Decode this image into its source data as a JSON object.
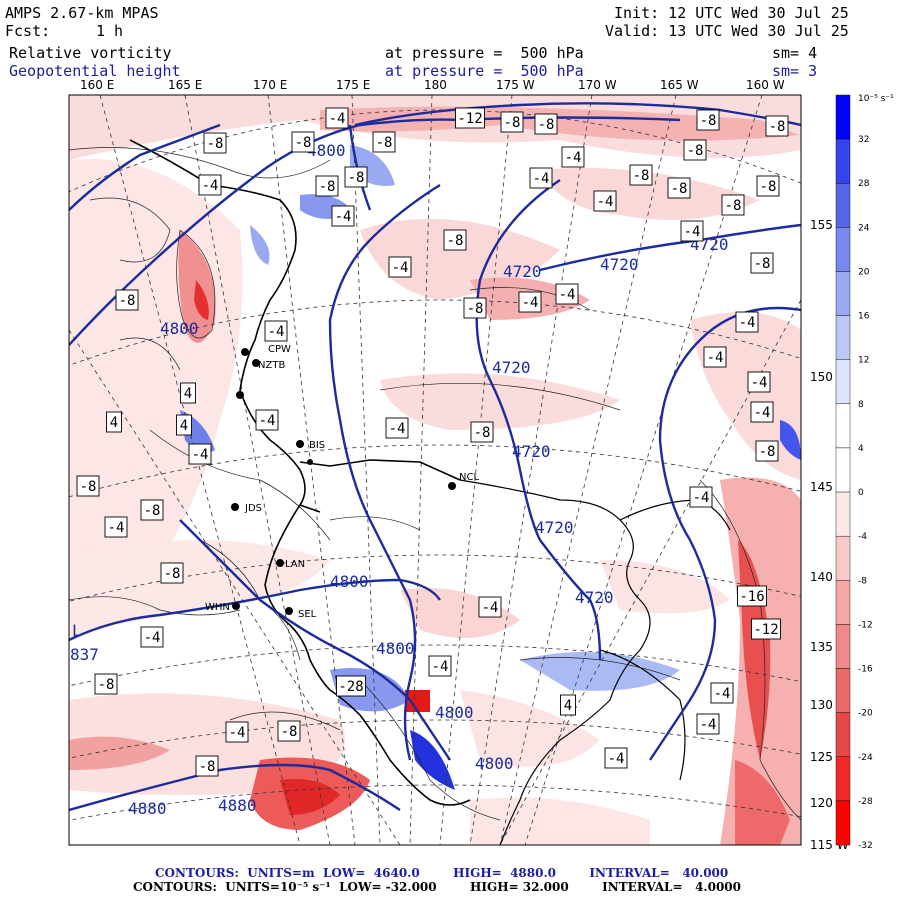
{
  "header": {
    "model": "AMPS 2.67-km MPAS",
    "init": "Init: 12 UTC Wed 30 Jul 25",
    "fcst_label": "Fcst:",
    "fcst_value": "1 h",
    "valid": "Valid: 13 UTC Wed 30 Jul 25",
    "field1": "Relative vorticity",
    "field1_level": "at pressure =  500 hPa",
    "field1_sm": "sm= 4",
    "field2": "Geopotential height",
    "field2_level": "at pressure =  500 hPa",
    "field2_sm": "sm= 3"
  },
  "lon_labels": [
    "160 E",
    "165 E",
    "170 E",
    "175 E",
    "180",
    "175 W",
    "170 W",
    "165 W",
    "160 W"
  ],
  "lat_labels": [
    "155 W",
    "150 W",
    "145 W",
    "140 W",
    "135 W",
    "130 W",
    "125 W",
    "120 W",
    "115 W"
  ],
  "colorbar": {
    "unit": "10⁻⁵ s⁻¹",
    "labels": [
      "32",
      "28",
      "24",
      "20",
      "16",
      "12",
      "8",
      "4",
      "0",
      "-4",
      "-8",
      "-12",
      "-16",
      "-20",
      "-24",
      "-28",
      "-32"
    ],
    "colors": [
      "#0000ff",
      "#3344ee",
      "#5566e6",
      "#7788ee",
      "#99aaf2",
      "#bbc8f6",
      "#dde4fb",
      "#ffffff",
      "#ffffff",
      "#fde8e8",
      "#f9c8c8",
      "#f4a8a8",
      "#ef8a8a",
      "#ea6a6a",
      "#e54848",
      "#f02828",
      "#ff0000"
    ]
  },
  "height_labels": [
    "4720",
    "4720",
    "4720",
    "4720",
    "4720",
    "4720",
    "4720",
    "4800",
    "4800",
    "4800",
    "4800",
    "4880",
    "4880",
    "4800",
    "4800"
  ],
  "vort_boxes": [
    "-8",
    "-4",
    "-8",
    "-8",
    "-12",
    "-8",
    "-8",
    "-8",
    "-8",
    "-8",
    "-4",
    "-4",
    "-8",
    "-8",
    "-4",
    "-8",
    "-4",
    "-4",
    "-8",
    "-8",
    "-8",
    "-8",
    "-4",
    "-4",
    "-8",
    "-8",
    "-4",
    "-4",
    "-8",
    "-4",
    "-4",
    "-4",
    "-4",
    "4",
    "4",
    "4",
    "-4",
    "-4",
    "-8",
    "-4",
    "-8",
    "-4",
    "-4",
    "-8",
    "-8",
    "-4",
    "-8",
    "-16",
    "-12",
    "-4",
    "-4",
    "-8",
    "-4",
    "-28",
    "-4",
    "-8",
    "-8",
    "-4",
    "4",
    "-4",
    "-4"
  ],
  "stations": [
    "CPW",
    "NZTB",
    "BIS",
    "JDS",
    "LAN",
    "WHN",
    "SEL",
    "NCL"
  ],
  "lows": [
    "L",
    "837"
  ],
  "footer": {
    "line1": "CONTOURS:  UNITS=m  LOW=  4640.0        HIGH=  4880.0        INTERVAL=   40.000",
    "line2": "CONTOURS:  UNITS=10⁻⁵ s⁻¹  LOW= -32.000        HIGH= 32.000        INTERVAL=   4.0000"
  }
}
